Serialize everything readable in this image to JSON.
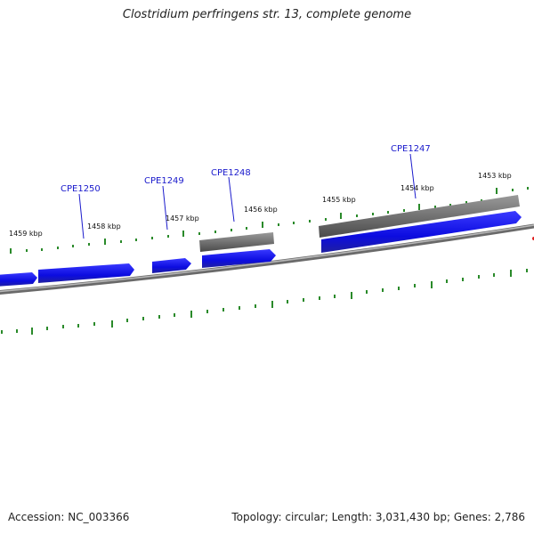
{
  "title": "Clostridium perfringens str. 13, complete genome",
  "footer": {
    "accession": "Accession: NC_003366",
    "summary": "Topology: circular; Length: 3,031,430 bp; Genes: 2,786"
  },
  "gene_labels": [
    "CPE1250",
    "CPE1249",
    "CPE1248",
    "CPE1247"
  ],
  "kbp_labels": [
    "1459 kbp",
    "1458 kbp",
    "1457 kbp",
    "1456 kbp",
    "1455 kbp",
    "1454 kbp",
    "1453 kbp"
  ],
  "colors": {
    "forward_gene": "#1010e0",
    "reverse_gene": "#707070",
    "backbone": "#888888",
    "tick": "#2a8a2a",
    "label_link": "#1a1acc"
  }
}
